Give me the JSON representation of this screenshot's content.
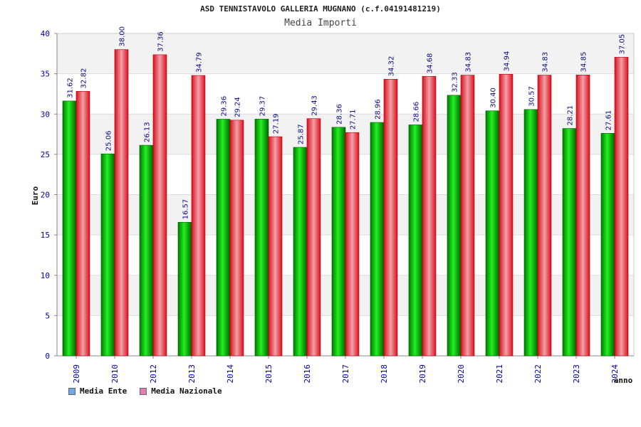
{
  "header": {
    "title": "ASD TENNISTAVOLO GALLERIA MUGNANO (c.f.04191481219)",
    "subtitle": "Media Importi"
  },
  "legend": {
    "items": [
      {
        "label": "Media Ente",
        "color": "#6fa8e8"
      },
      {
        "label": "Media Nazionale",
        "color": "#e080b0"
      }
    ]
  },
  "chart_data": {
    "type": "bar",
    "title": "Media Importi",
    "xlabel": "anno",
    "ylabel": "Euro",
    "ylim": [
      0,
      40
    ],
    "yticks": [
      0,
      5,
      10,
      15,
      20,
      25,
      30,
      35,
      40
    ],
    "grid": true,
    "legend_position": "bottom-left",
    "categories": [
      "2009",
      "2010",
      "2012",
      "2013",
      "2014",
      "2015",
      "2016",
      "2017",
      "2018",
      "2019",
      "2020",
      "2021",
      "2022",
      "2023",
      "2024"
    ],
    "series": [
      {
        "name": "Media Ente",
        "color": "#00b000",
        "values": [
          31.62,
          25.06,
          26.13,
          16.57,
          29.36,
          29.37,
          25.87,
          28.36,
          28.96,
          28.66,
          32.33,
          30.4,
          30.57,
          28.21,
          27.61
        ],
        "labels": [
          "31.62",
          "25.06",
          "26.13",
          "16.57",
          "29.36",
          "29.37",
          "25.87",
          "28.36",
          "28.96",
          "28.66",
          "32.33",
          "30.40",
          "30.57",
          "28.21",
          "27.61"
        ]
      },
      {
        "name": "Media Nazionale",
        "color": "#e8202c",
        "values": [
          32.82,
          38.0,
          37.36,
          34.79,
          29.24,
          27.19,
          29.43,
          27.71,
          34.32,
          34.68,
          34.83,
          34.94,
          34.83,
          34.85,
          37.05
        ],
        "labels": [
          "32.82",
          "38.00",
          "37.36",
          "34.79",
          "29.24",
          "27.19",
          "29.43",
          "27.71",
          "34.32",
          "34.68",
          "34.83",
          "34.94",
          "34.83",
          "34.85",
          "37.05"
        ]
      }
    ]
  }
}
